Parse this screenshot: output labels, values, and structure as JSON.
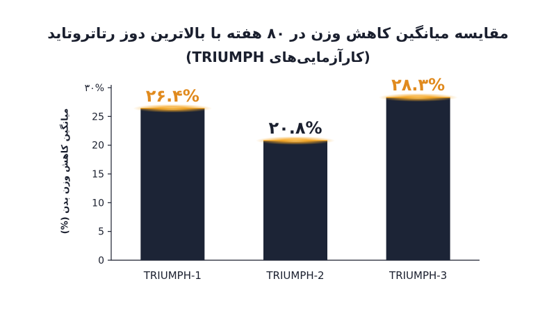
{
  "chart_data": {
    "type": "bar",
    "title": "مقایسه میانگین کاهش وزن در ۸۰ هفته با بالاترین دوز رتاتروتاید",
    "subtitle": "(کارآزمایی‌های TRIUMPH)",
    "xlabel": "",
    "ylabel": "میانگین کاهش وزن بدن (%)",
    "categories": [
      "TRIUMPH-1",
      "TRIUMPH-2",
      "TRIUMPH-3"
    ],
    "values": [
      26.4,
      20.8,
      28.3
    ],
    "value_labels": [
      "۲۶.۴%",
      "۲۰.۸%",
      "۲۸.۳%"
    ],
    "label_colors": [
      "#e08a1e",
      "#1a1f2e",
      "#e08a1e"
    ],
    "ylim": [
      0,
      30
    ],
    "yticks": [
      0,
      5,
      10,
      15,
      20,
      25,
      30
    ],
    "ytick_labels": [
      "0",
      "5",
      "10",
      "15",
      "20",
      "25",
      "۳۰%"
    ],
    "grid": false,
    "legend": "none",
    "bar_color": "#1c2436",
    "glow_color": "#f5a623",
    "axis_color": "#1a1f2e"
  }
}
